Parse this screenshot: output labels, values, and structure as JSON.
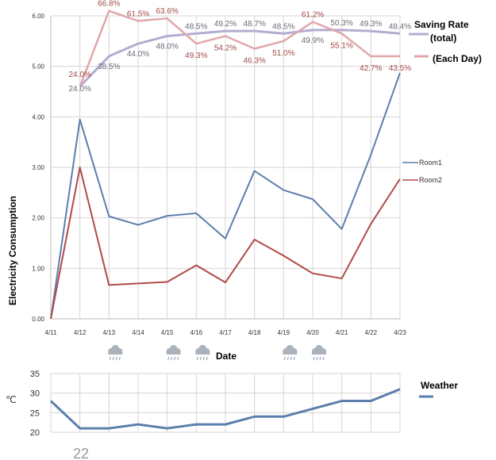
{
  "chart_data": [
    {
      "type": "line",
      "xlabel": "Date",
      "ylabel": "Electricity Consumption",
      "ylim": [
        0,
        6
      ],
      "yticks": [
        "0.00",
        "1.00",
        "2.00",
        "3.00",
        "4.00",
        "5.00",
        "6.00"
      ],
      "grid": true,
      "categories": [
        "4/11",
        "4/12",
        "4/13",
        "4/14",
        "4/15",
        "4/16",
        "4/17",
        "4/18",
        "4/19",
        "4/20",
        "4/21",
        "4/22",
        "4/23"
      ],
      "series": [
        {
          "name": "Room1",
          "color": "#5b7fad",
          "values": [
            0.0,
            3.95,
            2.03,
            1.86,
            2.04,
            2.09,
            1.59,
            2.93,
            2.55,
            2.37,
            1.78,
            3.25,
            4.87
          ]
        },
        {
          "name": "Room2",
          "color": "#b34a48",
          "values": [
            0.0,
            3.0,
            0.67,
            0.7,
            0.73,
            1.06,
            0.72,
            1.57,
            1.25,
            0.9,
            0.8,
            1.88,
            2.77
          ]
        },
        {
          "name": "Saving Rate (total)",
          "color": "#b4acd0",
          "values": [
            null,
            4.6,
            5.2,
            5.45,
            5.6,
            5.65,
            5.7,
            5.7,
            5.65,
            5.72,
            5.72,
            5.7,
            5.65
          ],
          "labels": [
            null,
            "24.0%",
            "38.5%",
            "44.0%",
            "48.0%",
            "48.5%",
            "49.2%",
            "48.7%",
            "48.5%",
            "49.9%",
            "50.3%",
            "49.3%",
            "48.4%"
          ]
        },
        {
          "name": "(Each Day)",
          "color": "#e0a7ab",
          "values": [
            null,
            4.6,
            6.1,
            5.9,
            5.95,
            5.45,
            5.6,
            5.35,
            5.5,
            5.88,
            5.65,
            5.2,
            5.2
          ],
          "labels": [
            null,
            "24.0%",
            "66.8%",
            "61.5%",
            "63.6%",
            "49.3%",
            "54.2%",
            "46.3%",
            "51.0%",
            "61.2%",
            "55.1%",
            "42.7%",
            "43.5%"
          ]
        }
      ],
      "legend": {
        "saving_total_line1": "Saving Rate",
        "saving_total_line2": "(total)",
        "each_day": "(Each Day)",
        "room1": "Room1",
        "room2": "Room2"
      },
      "rainy_days": [
        "4/13",
        "4/15",
        "4/16",
        "4/19",
        "4/20"
      ]
    },
    {
      "type": "line",
      "ylabel": "℃",
      "ylim": [
        20,
        35
      ],
      "yticks": [
        "20",
        "25",
        "30",
        "35"
      ],
      "series": [
        {
          "name": "Weather",
          "color": "#5b7fad",
          "values": [
            28,
            21,
            21,
            22,
            21,
            22,
            22,
            24,
            24,
            26,
            28,
            28,
            31
          ]
        }
      ],
      "legend_label": "Weather"
    }
  ],
  "page_number": "22"
}
